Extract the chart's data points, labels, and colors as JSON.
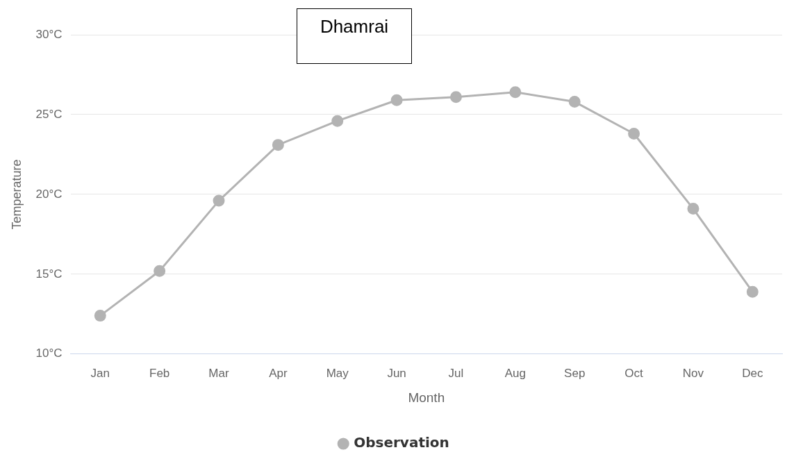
{
  "chart_data": {
    "type": "line",
    "title": "Dhamrai",
    "xlabel": "Month",
    "ylabel": "Temperature",
    "categories": [
      "Jan",
      "Feb",
      "Mar",
      "Apr",
      "May",
      "Jun",
      "Jul",
      "Aug",
      "Sep",
      "Oct",
      "Nov",
      "Dec"
    ],
    "series": [
      {
        "name": "Observation",
        "color": "#b3b3b3",
        "values": [
          12.4,
          15.2,
          19.6,
          23.1,
          24.6,
          25.9,
          26.1,
          26.4,
          25.8,
          23.8,
          19.1,
          13.9
        ]
      }
    ],
    "ylim": [
      10,
      30
    ],
    "yticks": [
      {
        "value": 10,
        "label": "10°C"
      },
      {
        "value": 15,
        "label": "15°C"
      },
      {
        "value": 20,
        "label": "20°C"
      },
      {
        "value": 25,
        "label": "25°C"
      },
      {
        "value": 30,
        "label": "30°C"
      }
    ],
    "grid": "y",
    "legend": "bottom",
    "marker": "circle",
    "line_style": "solid"
  }
}
